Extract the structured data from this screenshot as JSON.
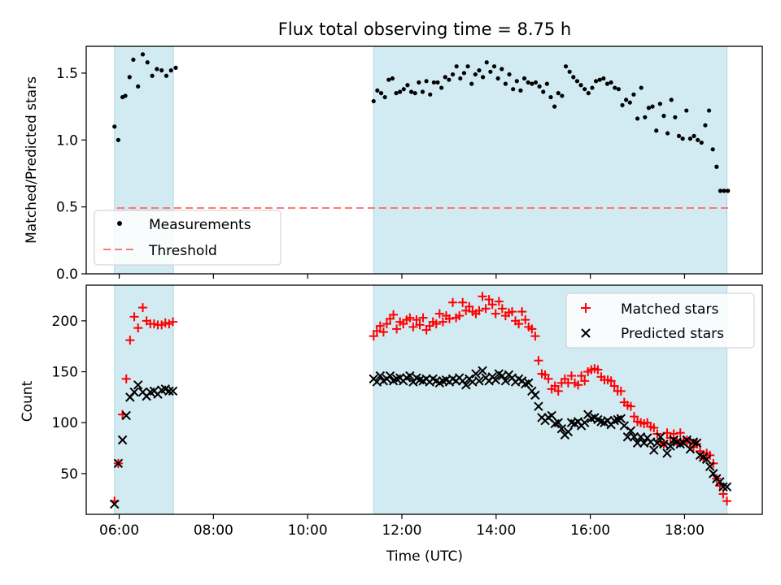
{
  "figure": {
    "title": "Flux total observing time = 8.75 h",
    "xlabel": "Time (UTC)",
    "xticks": [
      "06:00",
      "08:00",
      "10:00",
      "12:00",
      "14:00",
      "16:00",
      "18:00"
    ]
  },
  "chart_data": [
    {
      "type": "scatter",
      "title": "Flux total observing time = 8.75 h",
      "xlabel": "",
      "ylabel": "Matched/Predicted stars",
      "x_unit": "hours UTC",
      "xlim": [
        5.3,
        19.65
      ],
      "ylim": [
        0.0,
        1.7
      ],
      "yticks": [
        0.0,
        0.5,
        1.0,
        1.5
      ],
      "ytick_labels": [
        "0.0",
        "0.5",
        "1.0",
        "1.5"
      ],
      "legend": "lower-left",
      "highlight_intervals": [
        [
          5.9,
          7.15
        ],
        [
          11.4,
          18.9
        ]
      ],
      "highlight_color": "#add8e6",
      "series": [
        {
          "name": "Measurements",
          "marker": "dot",
          "color": "#000000",
          "x": [
            5.9,
            5.98,
            6.07,
            6.13,
            6.22,
            6.3,
            6.4,
            6.5,
            6.6,
            6.7,
            6.8,
            6.9,
            7.0,
            7.1,
            7.2,
            11.4,
            11.48,
            11.56,
            11.64,
            11.72,
            11.8,
            11.88,
            11.96,
            12.04,
            12.12,
            12.2,
            12.28,
            12.36,
            12.44,
            12.52,
            12.6,
            12.68,
            12.76,
            12.84,
            12.92,
            13.0,
            13.08,
            13.16,
            13.24,
            13.32,
            13.4,
            13.48,
            13.56,
            13.64,
            13.72,
            13.8,
            13.88,
            13.96,
            14.04,
            14.12,
            14.2,
            14.28,
            14.36,
            14.44,
            14.52,
            14.6,
            14.68,
            14.76,
            14.84,
            14.92,
            15.0,
            15.08,
            15.16,
            15.24,
            15.32,
            15.4,
            15.48,
            15.56,
            15.64,
            15.72,
            15.8,
            15.88,
            15.96,
            16.04,
            16.12,
            16.2,
            16.28,
            16.36,
            16.44,
            16.52,
            16.6,
            16.68,
            16.76,
            16.84,
            16.92,
            17.0,
            17.08,
            17.16,
            17.24,
            17.32,
            17.4,
            17.48,
            17.56,
            17.64,
            17.72,
            17.8,
            17.88,
            17.96,
            18.04,
            18.12,
            18.2,
            18.28,
            18.36,
            18.44,
            18.52,
            18.6,
            18.68,
            18.76,
            18.84,
            18.92
          ],
          "y": [
            1.1,
            1.0,
            1.32,
            1.33,
            1.47,
            1.6,
            1.4,
            1.64,
            1.58,
            1.48,
            1.53,
            1.52,
            1.48,
            1.52,
            1.54,
            1.29,
            1.37,
            1.35,
            1.32,
            1.45,
            1.46,
            1.35,
            1.36,
            1.38,
            1.41,
            1.36,
            1.35,
            1.43,
            1.36,
            1.44,
            1.34,
            1.43,
            1.43,
            1.39,
            1.47,
            1.45,
            1.49,
            1.55,
            1.46,
            1.5,
            1.55,
            1.42,
            1.49,
            1.52,
            1.47,
            1.58,
            1.51,
            1.55,
            1.46,
            1.53,
            1.42,
            1.49,
            1.38,
            1.44,
            1.37,
            1.46,
            1.43,
            1.42,
            1.43,
            1.4,
            1.36,
            1.42,
            1.32,
            1.25,
            1.35,
            1.33,
            1.55,
            1.51,
            1.47,
            1.44,
            1.41,
            1.38,
            1.35,
            1.39,
            1.44,
            1.45,
            1.46,
            1.42,
            1.43,
            1.39,
            1.38,
            1.26,
            1.3,
            1.28,
            1.34,
            1.16,
            1.39,
            1.17,
            1.24,
            1.25,
            1.07,
            1.27,
            1.18,
            1.05,
            1.3,
            1.17,
            1.03,
            1.01,
            1.22,
            1.01,
            1.03,
            1.0,
            0.98,
            1.11,
            1.22,
            0.93,
            0.8,
            0.62,
            0.62,
            0.62
          ]
        },
        {
          "name": "Threshold",
          "type": "line",
          "style": "dashed",
          "color": "#ff7777",
          "y_value": 0.5
        }
      ]
    },
    {
      "type": "scatter",
      "title": "",
      "xlabel": "Time (UTC)",
      "ylabel": "Count",
      "x_unit": "hours UTC",
      "xlim": [
        5.3,
        19.65
      ],
      "ylim": [
        10,
        235
      ],
      "yticks": [
        50,
        100,
        150,
        200
      ],
      "ytick_labels": [
        "50",
        "100",
        "150",
        "200"
      ],
      "legend": "top-right",
      "highlight_intervals": [
        [
          5.9,
          7.15
        ],
        [
          11.4,
          18.9
        ]
      ],
      "highlight_color": "#add8e6",
      "x": [
        5.9,
        5.98,
        6.07,
        6.15,
        6.23,
        6.32,
        6.4,
        6.5,
        6.58,
        6.66,
        6.74,
        6.82,
        6.9,
        6.98,
        7.06,
        7.14,
        11.4,
        11.47,
        11.54,
        11.61,
        11.68,
        11.75,
        11.82,
        11.89,
        11.96,
        12.03,
        12.1,
        12.17,
        12.24,
        12.31,
        12.38,
        12.45,
        12.52,
        12.59,
        12.66,
        12.73,
        12.8,
        12.87,
        12.94,
        13.01,
        13.08,
        13.15,
        13.22,
        13.29,
        13.36,
        13.43,
        13.5,
        13.57,
        13.64,
        13.71,
        13.78,
        13.85,
        13.92,
        13.99,
        14.06,
        14.13,
        14.2,
        14.27,
        14.34,
        14.41,
        14.48,
        14.55,
        14.62,
        14.69,
        14.76,
        14.83,
        14.9,
        14.97,
        15.04,
        15.11,
        15.18,
        15.25,
        15.32,
        15.39,
        15.46,
        15.53,
        15.6,
        15.67,
        15.74,
        15.81,
        15.88,
        15.95,
        16.02,
        16.09,
        16.16,
        16.23,
        16.3,
        16.37,
        16.44,
        16.51,
        16.58,
        16.65,
        16.72,
        16.79,
        16.86,
        16.93,
        17.0,
        17.07,
        17.14,
        17.21,
        17.28,
        17.35,
        17.42,
        17.49,
        17.56,
        17.63,
        17.7,
        17.77,
        17.84,
        17.91,
        17.98,
        18.05,
        18.12,
        18.19,
        18.26,
        18.33,
        18.4,
        18.47,
        18.54,
        18.61,
        18.68,
        18.75,
        18.82,
        18.9
      ],
      "series": [
        {
          "name": "Matched stars",
          "marker": "plus",
          "color": "#ff0000",
          "values": [
            23,
            60,
            108,
            143,
            181,
            204,
            193,
            213,
            200,
            197,
            197,
            196,
            196,
            198,
            197,
            199,
            185,
            190,
            195,
            189,
            197,
            202,
            206,
            192,
            199,
            197,
            201,
            203,
            194,
            201,
            196,
            203,
            191,
            195,
            199,
            197,
            207,
            199,
            205,
            202,
            218,
            203,
            205,
            218,
            210,
            214,
            209,
            207,
            210,
            224,
            212,
            221,
            216,
            207,
            219,
            212,
            205,
            208,
            209,
            200,
            197,
            209,
            201,
            194,
            192,
            185,
            161,
            148,
            147,
            143,
            133,
            136,
            131,
            139,
            143,
            139,
            146,
            139,
            137,
            146,
            141,
            150,
            152,
            153,
            152,
            145,
            142,
            142,
            141,
            136,
            131,
            131,
            120,
            117,
            116,
            106,
            101,
            100,
            99,
            100,
            96,
            95,
            89,
            81,
            79,
            90,
            85,
            89,
            81,
            90,
            82,
            83,
            80,
            76,
            79,
            72,
            65,
            70,
            68,
            60,
            45,
            38,
            30,
            23
          ]
        },
        {
          "name": "Predicted stars",
          "marker": "x",
          "color": "#000000",
          "values": [
            20,
            60,
            83,
            107,
            125,
            130,
            137,
            130,
            126,
            130,
            131,
            128,
            132,
            133,
            131,
            131,
            143,
            140,
            146,
            141,
            143,
            146,
            141,
            143,
            144,
            141,
            144,
            146,
            140,
            144,
            142,
            141,
            143,
            140,
            143,
            141,
            139,
            141,
            142,
            140,
            143,
            141,
            144,
            141,
            137,
            143,
            140,
            148,
            141,
            151,
            144,
            141,
            145,
            142,
            148,
            146,
            141,
            147,
            144,
            140,
            143,
            141,
            138,
            139,
            131,
            127,
            116,
            105,
            102,
            105,
            107,
            99,
            100,
            94,
            88,
            91,
            100,
            99,
            101,
            97,
            100,
            108,
            104,
            105,
            103,
            101,
            100,
            102,
            98,
            102,
            103,
            104,
            97,
            86,
            92,
            86,
            80,
            86,
            80,
            85,
            81,
            73,
            80,
            86,
            79,
            70,
            77,
            83,
            81,
            79,
            80,
            83,
            74,
            81,
            80,
            68,
            66,
            64,
            57,
            50,
            45,
            42,
            37,
            37
          ]
        }
      ]
    }
  ]
}
